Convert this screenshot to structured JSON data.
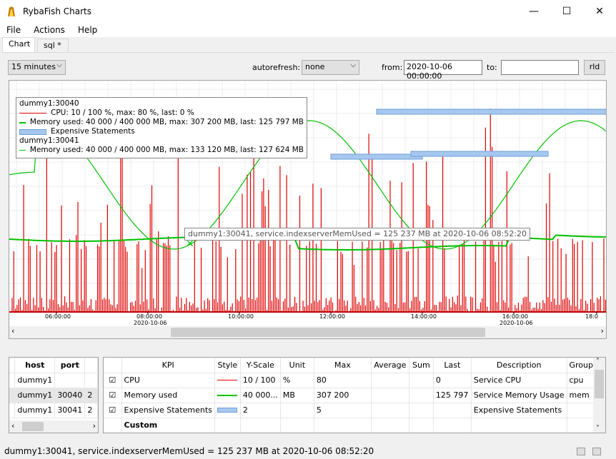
{
  "window": {
    "title": "RybaFish Charts",
    "minimize": "—",
    "maximize": "☐",
    "close": "✕"
  },
  "menu": [
    "File",
    "Actions",
    "Help"
  ],
  "tabs": [
    "Chart",
    "sql *"
  ],
  "toolbar": {
    "range": "15 minutes",
    "autorefresh_label": "autorefresh:",
    "autorefresh": "none",
    "from_label": "from:",
    "from_value": "2020-10-06 00:00:00",
    "to_label": "to:",
    "to_value": "",
    "reload": "rld"
  },
  "colors": {
    "cpu": "#e00000",
    "mem": "#00c000",
    "expensive": "#a6c8ef"
  },
  "legend": {
    "host1": "dummy1:30040",
    "cpu": "CPU: 10 / 100 %, max: 80 %, last: 0 %",
    "mem1": "Memory used: 40 000 / 400 000 MB, max: 307 200 MB, last: 125 797 MB",
    "expensive": "Expensive Statements",
    "host2": "dummy1:30041",
    "mem2": "Memory used: 40 000 / 400 000 MB, max: 133 120 MB, last: 127 624 MB"
  },
  "tooltip": "dummy1:30041, service.indexserverMemUsed = 125 237 MB at 2020-10-06 08:52:20",
  "axis": {
    "ticks": [
      "06:00:00",
      "08:00:00",
      "10:00:00",
      "12:00:00",
      "14:00:00",
      "16:00:00",
      "18:0"
    ],
    "date": "2020-10-06"
  },
  "hosts": {
    "headers": [
      "host",
      "port",
      ""
    ],
    "rows": [
      [
        "dummy1",
        "",
        ""
      ],
      [
        "dummy1",
        "30040",
        "2"
      ],
      [
        "dummy1",
        "30041",
        "2"
      ]
    ]
  },
  "kpis": {
    "headers": [
      "",
      "KPI",
      "Style",
      "Y-Scale",
      "Unit",
      "Max",
      "Average",
      "Sum",
      "Last",
      "Description",
      "Group"
    ],
    "rows": [
      {
        "check": "☑",
        "kpi": "CPU",
        "style": "cpu",
        "yscale": "10 / 100",
        "unit": "%",
        "max": "80",
        "avg": "",
        "sum": "",
        "last": "0",
        "desc": "Service CPU",
        "group": "cpu"
      },
      {
        "check": "☑",
        "kpi": "Memory used",
        "style": "mem",
        "yscale": "40 000...",
        "unit": "MB",
        "max": "307 200",
        "avg": "",
        "sum": "",
        "last": "125 797",
        "desc": "Service Memory Usage",
        "group": "mem"
      },
      {
        "check": "☑",
        "kpi": "Expensive Statements",
        "style": "exp",
        "yscale": "2",
        "unit": "",
        "max": "5",
        "avg": "",
        "sum": "",
        "last": "",
        "desc": "Expensive Statements",
        "group": ""
      },
      {
        "check": "",
        "kpi": "Custom",
        "style": "",
        "yscale": "",
        "unit": "",
        "max": "",
        "avg": "",
        "sum": "",
        "last": "",
        "desc": "",
        "group": ""
      }
    ]
  },
  "status": "dummy1:30041, service.indexserverMemUsed = 125 237 MB at 2020-10-06 08:52:20"
}
